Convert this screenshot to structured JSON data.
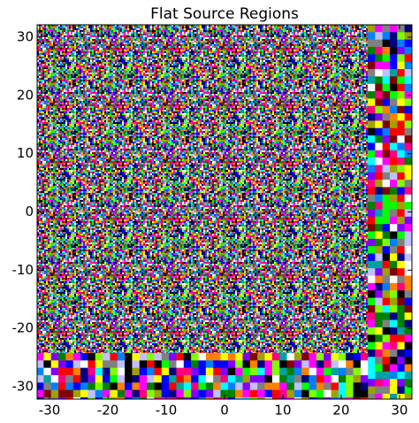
{
  "chart_data": {
    "type": "image",
    "title": "Flat Source Regions",
    "xlim": [
      -32.13,
      32.13
    ],
    "ylim": [
      -32.13,
      32.13
    ],
    "xticks": [
      -30,
      -20,
      -10,
      0,
      10,
      20,
      30
    ],
    "yticks": [
      -30,
      -20,
      -10,
      0,
      10,
      20,
      30
    ]
  }
}
